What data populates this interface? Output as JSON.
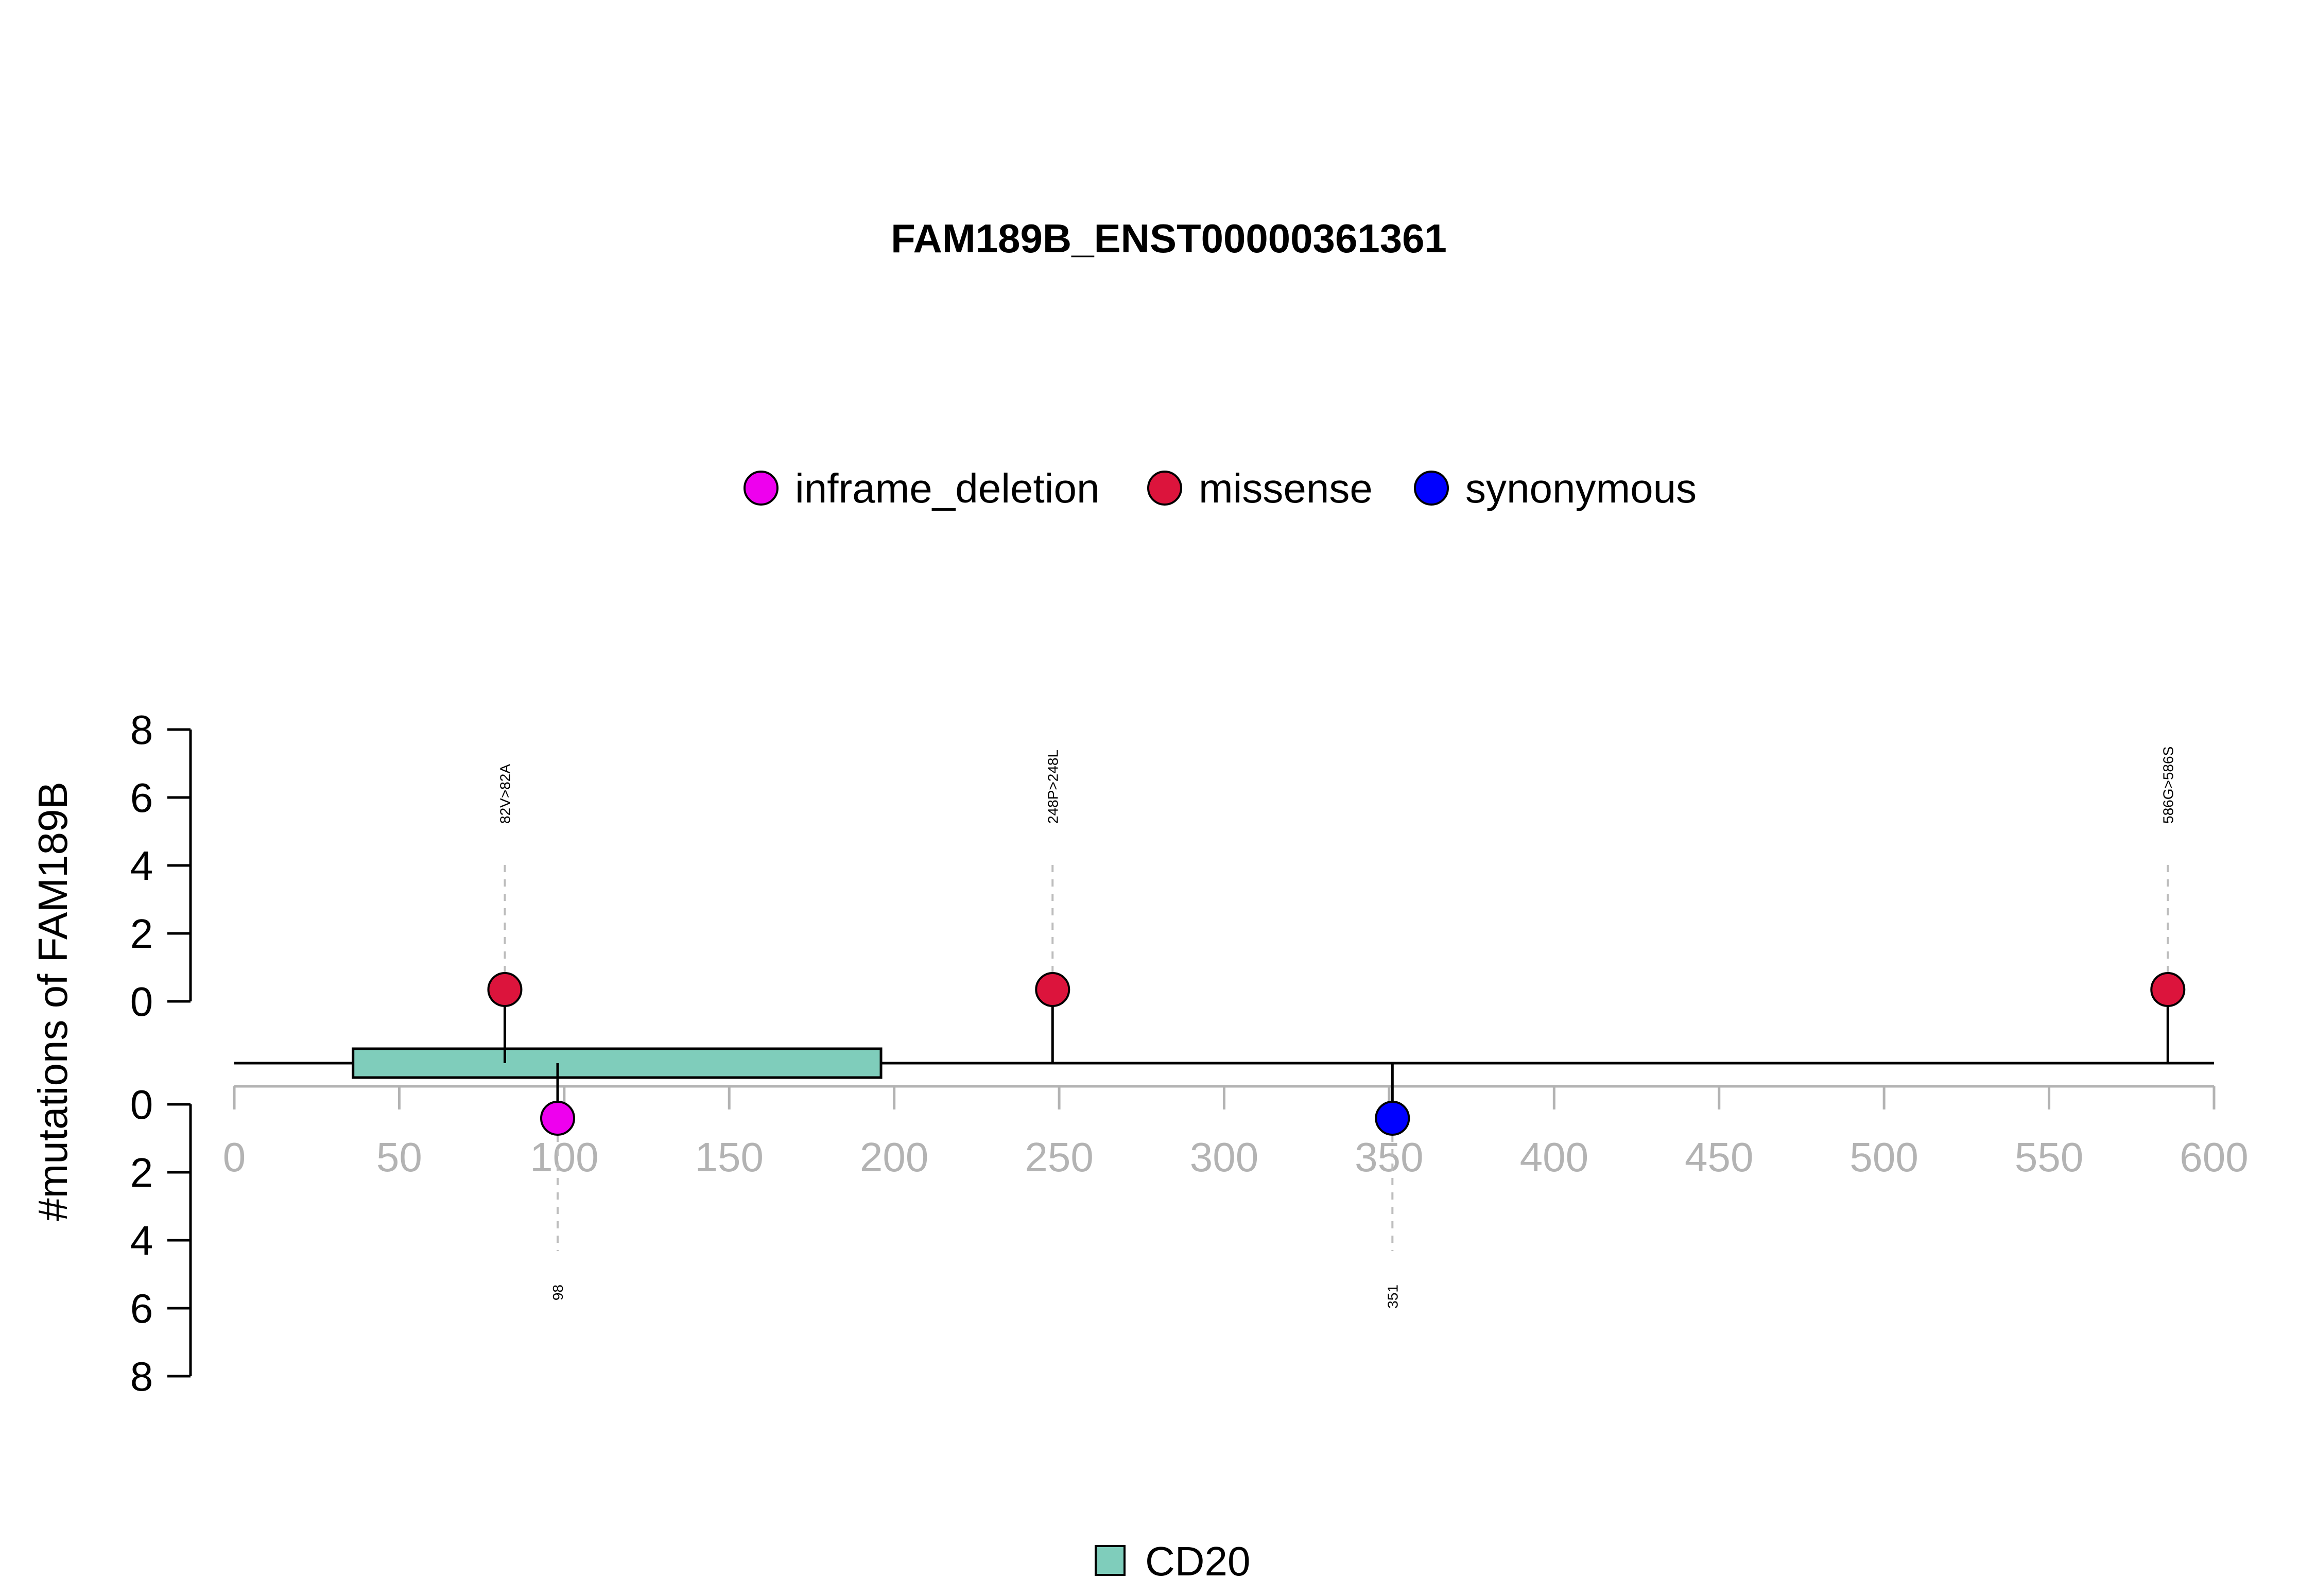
{
  "chart_data": {
    "type": "lollipop",
    "title": "FAM189B_ENST00000361361",
    "ylabel": "#mutations of FAM189B",
    "xlim": [
      0,
      600
    ],
    "x_ticks": [
      0,
      50,
      100,
      150,
      200,
      250,
      300,
      350,
      400,
      450,
      500,
      550,
      600
    ],
    "y_ticks_top": [
      0,
      2,
      4,
      6,
      8
    ],
    "y_ticks_bottom": [
      0,
      2,
      4,
      6,
      8
    ],
    "legend_position": "top-center",
    "mutation_types": [
      {
        "name": "inframe_deletion",
        "color": "#EE00EE"
      },
      {
        "name": "missense",
        "color": "#DC143C"
      },
      {
        "name": "synonymous",
        "color": "#0000FF"
      }
    ],
    "mutations": [
      {
        "position": 82,
        "count": 1,
        "type": "missense",
        "label": "82V>82A",
        "side": "top"
      },
      {
        "position": 248,
        "count": 1,
        "type": "missense",
        "label": "248P>248L",
        "side": "top"
      },
      {
        "position": 586,
        "count": 1,
        "type": "missense",
        "label": "586G>586S",
        "side": "top"
      },
      {
        "position": 98,
        "count": 1,
        "type": "inframe_deletion",
        "label": "98",
        "side": "bottom"
      },
      {
        "position": 351,
        "count": 1,
        "type": "synonymous",
        "label": "351",
        "side": "bottom"
      }
    ],
    "domains": [
      {
        "name": "CD20",
        "start": 36,
        "end": 196,
        "color": "#7FCDBB"
      }
    ],
    "domain_legend_position": "bottom-center"
  }
}
